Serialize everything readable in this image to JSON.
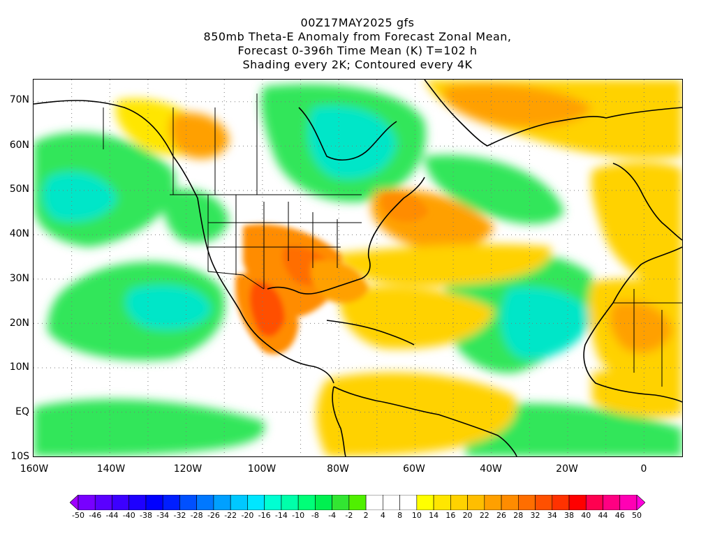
{
  "header": {
    "line1": "00Z17MAY2025 gfs",
    "line2": "850mb Theta-E Anomaly from Forecast Zonal Mean,",
    "line3": "Forecast 0-396h Time Mean (K) T=102 h",
    "line4": "Shading every 2K; Contoured every 4K"
  },
  "map": {
    "extent": {
      "lon_min": -160,
      "lon_max": 10,
      "lat_min": -10,
      "lat_max": 75
    },
    "lat_ticks": [
      "70N",
      "60N",
      "50N",
      "40N",
      "30N",
      "20N",
      "10N",
      "EQ",
      "10S"
    ],
    "lon_ticks": [
      "160W",
      "140W",
      "120W",
      "100W",
      "80W",
      "60W",
      "40W",
      "20W",
      "0"
    ],
    "grid": "dotted"
  },
  "colorbar": {
    "labels": [
      "-50",
      "-46",
      "-44",
      "-40",
      "-38",
      "-34",
      "-32",
      "-28",
      "-26",
      "-22",
      "-20",
      "-16",
      "-14",
      "-10",
      "-8",
      "-4",
      "-2",
      "2",
      "4",
      "8",
      "10",
      "14",
      "16",
      "20",
      "22",
      "26",
      "28",
      "32",
      "34",
      "38",
      "40",
      "44",
      "46",
      "50"
    ],
    "colors": [
      "#a000ff",
      "#7800ff",
      "#5a00ff",
      "#3c00ff",
      "#1e00ff",
      "#0000ff",
      "#001eff",
      "#0050ff",
      "#0078ff",
      "#00a0ff",
      "#00c8ff",
      "#00e6ff",
      "#00ffd2",
      "#00ffaa",
      "#00ff78",
      "#00f050",
      "#32e632",
      "#50f000",
      "#ffffff",
      "#ffffff",
      "#ffffff",
      "#ffff00",
      "#ffe600",
      "#ffd200",
      "#ffbe00",
      "#ffa000",
      "#ff8c00",
      "#ff6e00",
      "#ff5000",
      "#ff3200",
      "#ff0000",
      "#ff0050",
      "#ff0082",
      "#ff00b4",
      "#ff00dc"
    ]
  }
}
